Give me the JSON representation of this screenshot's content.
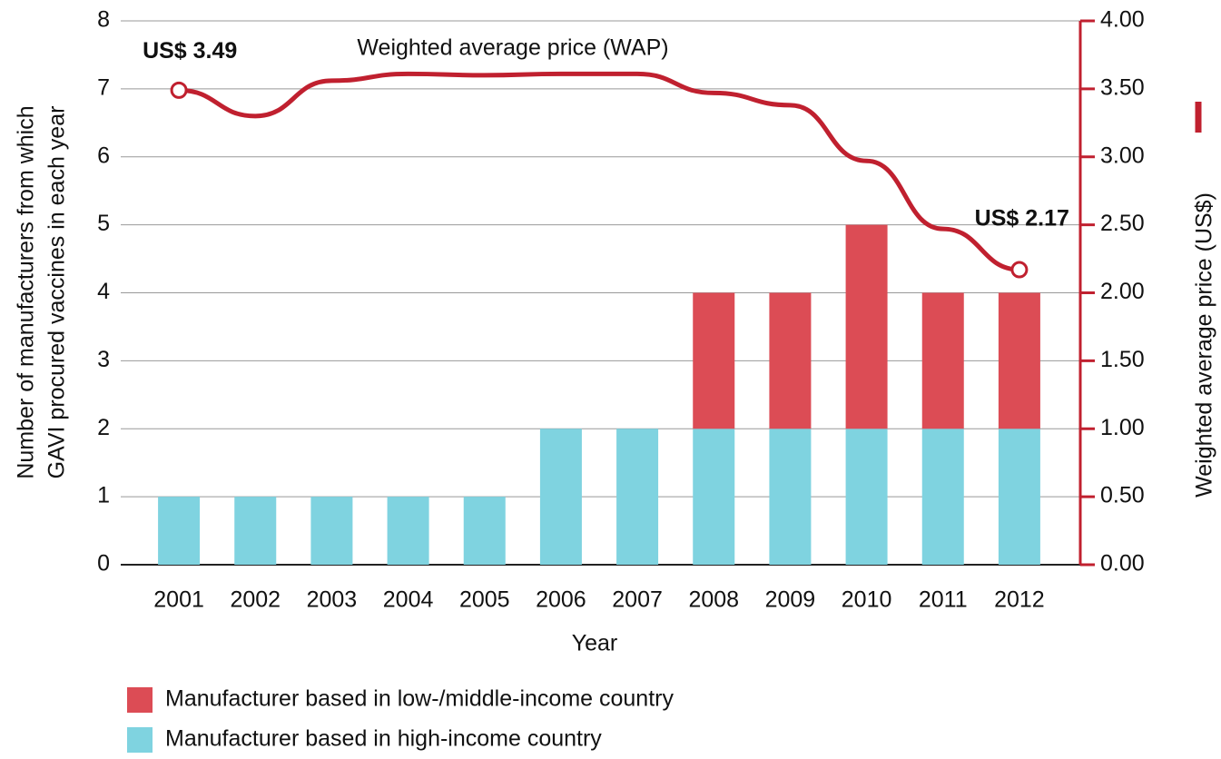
{
  "chart_data": {
    "type": "bar",
    "ylabel_lines": [
      "Number of manufacturers from which",
      "GAVI procured vaccines in each year"
    ],
    "xlabel": "Year",
    "y2label": "Weighted average price (US$)",
    "categories": [
      "2001",
      "2002",
      "2003",
      "2004",
      "2005",
      "2006",
      "2007",
      "2008",
      "2009",
      "2010",
      "2011",
      "2012"
    ],
    "series": [
      {
        "name": "Manufacturer based in high-income country",
        "color": "#7fd3e0",
        "type": "bar",
        "values": [
          1,
          1,
          1,
          1,
          1,
          2,
          2,
          2,
          2,
          2,
          2,
          2
        ]
      },
      {
        "name": "Manufacturer based in low-/middle-income country",
        "color": "#dc4c55",
        "type": "bar",
        "values": [
          0,
          0,
          0,
          0,
          0,
          0,
          0,
          2,
          2,
          3,
          2,
          2
        ]
      },
      {
        "name": "Weighted average price (WAP)",
        "color": "#c0202f",
        "type": "line",
        "axis": "y2",
        "values": [
          3.49,
          3.3,
          3.56,
          3.61,
          3.6,
          3.61,
          3.61,
          3.47,
          3.38,
          2.97,
          2.47,
          2.17
        ],
        "value_labels": [
          "US$ 3.49",
          null,
          null,
          null,
          null,
          null,
          null,
          null,
          null,
          null,
          null,
          "US$ 2.17"
        ]
      }
    ],
    "ylim": [
      0,
      8
    ],
    "yticks": [
      0,
      1,
      2,
      3,
      4,
      5,
      6,
      7,
      8
    ],
    "y2lim": [
      0,
      4
    ],
    "y2ticks": [
      {
        "value": 0,
        "label": "0.00"
      },
      {
        "value": 0.5,
        "label": "0.50"
      },
      {
        "value": 1,
        "label": "1.00"
      },
      {
        "value": 1.5,
        "label": "1.50"
      },
      {
        "value": 2,
        "label": "2.00"
      },
      {
        "value": 2.5,
        "label": "2.50"
      },
      {
        "value": 3,
        "label": "3.00"
      },
      {
        "value": 3.5,
        "label": "3.50"
      },
      {
        "value": 4,
        "label": "4.00"
      }
    ],
    "grid": true
  }
}
